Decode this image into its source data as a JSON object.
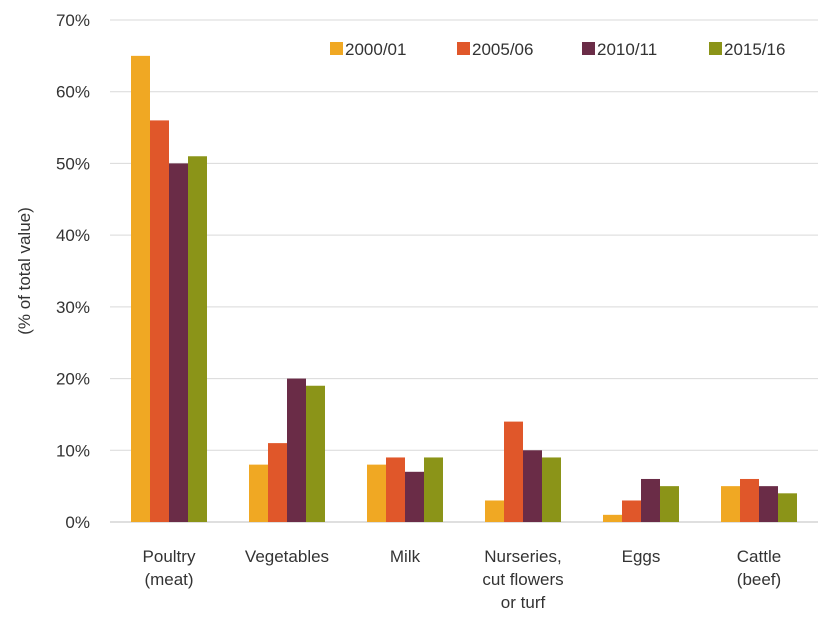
{
  "chart_data": {
    "type": "bar",
    "title": "",
    "xlabel": "",
    "ylabel": "(% of total value)",
    "ylim": [
      0,
      70
    ],
    "yticks": [
      0,
      10,
      20,
      30,
      40,
      50,
      60,
      70
    ],
    "ytick_labels": [
      "0%",
      "10%",
      "20%",
      "30%",
      "40%",
      "50%",
      "60%",
      "70%"
    ],
    "grid": true,
    "legend": "top-right",
    "categories": [
      [
        "Poultry",
        "(meat)"
      ],
      [
        "Vegetables"
      ],
      [
        "Milk"
      ],
      [
        "Nurseries,",
        "cut flowers",
        "or turf"
      ],
      [
        "Eggs"
      ],
      [
        "Cattle",
        "(beef)"
      ]
    ],
    "series": [
      {
        "name": "2000/01",
        "color": "#F0A823",
        "values": [
          65,
          8,
          8,
          3,
          1,
          5
        ]
      },
      {
        "name": "2005/06",
        "color": "#E0572A",
        "values": [
          56,
          11,
          9,
          14,
          3,
          6
        ]
      },
      {
        "name": "2010/11",
        "color": "#6A2C47",
        "values": [
          50,
          20,
          7,
          10,
          6,
          5
        ]
      },
      {
        "name": "2015/16",
        "color": "#8B9418",
        "values": [
          51,
          19,
          9,
          9,
          5,
          4
        ]
      }
    ]
  }
}
